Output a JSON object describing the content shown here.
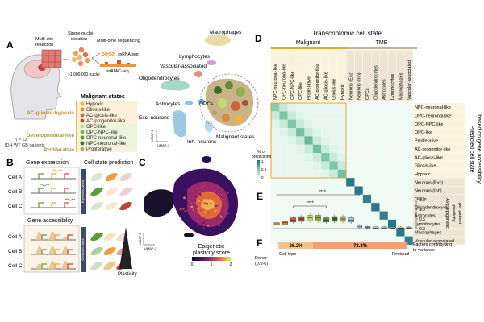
{
  "panels": {
    "A": "A",
    "B": "B",
    "C": "C",
    "D": "D",
    "E": "E",
    "F": "F"
  },
  "panel_a": {
    "steps": [
      "Multi-site resection",
      "Single-nuclei isolation",
      "Multi-ome sequencing"
    ],
    "assays": [
      "snRNA-seq",
      "snATAC-seq"
    ],
    "nuclei": ">1,000,000 nuclei",
    "patients": [
      "n = 12",
      "IDH WT GB patients"
    ],
    "umap_labels": [
      "Macrophages",
      "Lymphocytes",
      "Vascular-associated",
      "Oligodendrocytes",
      "Astrocytes",
      "OPCs",
      "Exc. neurons",
      "Inh. neurons",
      "Malignant states"
    ],
    "umap_axes": [
      "UMAP-2",
      "UMAP-1"
    ],
    "legend_title": "Malignant states",
    "groups": [
      "AC-gliosis-hypoxia",
      "Developmental-like",
      "Proliferative"
    ],
    "states": [
      {
        "name": "Hypoxic",
        "color": "#f2b43c"
      },
      {
        "name": "Gliosis-like",
        "color": "#d88a36"
      },
      {
        "name": "AC-gliosis-like",
        "color": "#c76439"
      },
      {
        "name": "AC-progenitor-like",
        "color": "#a8503a"
      },
      {
        "name": "OPC-like",
        "color": "#c7d87a"
      },
      {
        "name": "OPC-NPC-like",
        "color": "#8eb04e"
      },
      {
        "name": "OPC-neuronal-like",
        "color": "#5f8f3a"
      },
      {
        "name": "NPC-neuronal-like",
        "color": "#3d6e2d"
      },
      {
        "name": "Proliferative",
        "color": "#b8a468"
      }
    ]
  },
  "panel_b": {
    "gene_expression": "Gene expression",
    "cell_state_prediction": "Cell state prediction",
    "gene_accessibility": "Gene accessibility",
    "cells": [
      "Cell A",
      "Cell B",
      "Cell C"
    ],
    "bar_label_top": "Expression-based",
    "bar_label_bottom": "Chromatin-based",
    "plasticity": "Plasticity"
  },
  "panel_c": {
    "axes": [
      "UMAP-2",
      "UMAP-1"
    ],
    "score_label": [
      "Epigenetic",
      "plasticity score"
    ],
    "scale": [
      "0",
      "1",
      "2"
    ]
  },
  "panel_d": {
    "top_title": "Transcriptomic cell state",
    "malignant": "Malignant",
    "tme": "TME",
    "side_title": [
      "Predicted cell state",
      "based on gene accessibility"
    ],
    "labels": [
      "NPC-neuronal-like",
      "OPC-neuronal-like",
      "OPC-NPC-like",
      "OPC-like",
      "Proliferative",
      "AC-progenitor-like",
      "AC-gliosis-like",
      "Gliosis-like",
      "Hypoxic",
      "Neurons (Exc)",
      "Neurons (Inh)",
      "OPCs",
      "Oligodendrocytes",
      "Astrocytes",
      "Lymphocytes",
      "Macrophages",
      "Vascular-associated"
    ],
    "colorbar_title": [
      "% of",
      "predictions"
    ],
    "colorbar_ticks": [
      "1",
      "0.5",
      "0"
    ]
  },
  "panel_e": {
    "significance": [
      "****",
      "****"
    ],
    "ylabel": [
      "Avg. epigenetic",
      "plasticity",
      "per patient"
    ],
    "yticks": [
      "1.5",
      "1.0",
      "0.5",
      "0.0"
    ]
  },
  "panel_f": {
    "segments": [
      {
        "label": "26.2%",
        "fraction": 0.262,
        "color": "#f3c48a"
      },
      {
        "label": "73.3%",
        "fraction": 0.733,
        "color": "#f0a074"
      }
    ],
    "caption": [
      "Cell type",
      "Residual"
    ],
    "donor": [
      "Donor",
      "(0.5%)"
    ],
    "title": [
      "Factors contributing",
      "to variance"
    ]
  },
  "chart_data": {
    "type": "heatmap",
    "title": "Transcriptomic cell state vs predicted cell state based on gene accessibility",
    "x_categories": [
      "NPC-neuronal-like",
      "OPC-neuronal-like",
      "OPC-NPC-like",
      "OPC-like",
      "Proliferative",
      "AC-progenitor-like",
      "AC-gliosis-like",
      "Gliosis-like",
      "Hypoxic",
      "Neurons (Exc)",
      "Neurons (Inh)",
      "OPCs",
      "Oligodendrocytes",
      "Astrocytes",
      "Lymphocytes",
      "Macrophages",
      "Vascular-associated"
    ],
    "y_categories": [
      "NPC-neuronal-like",
      "OPC-neuronal-like",
      "OPC-NPC-like",
      "OPC-like",
      "Proliferative",
      "AC-progenitor-like",
      "AC-gliosis-like",
      "Gliosis-like",
      "Hypoxic",
      "Neurons (Exc)",
      "Neurons (Inh)",
      "OPCs",
      "Oligodendrocytes",
      "Astrocytes",
      "Lymphocytes",
      "Macrophages",
      "Vascular-associated"
    ],
    "diagonal_values": [
      0.45,
      0.5,
      0.5,
      0.55,
      0.6,
      0.55,
      0.5,
      0.5,
      0.55,
      0.95,
      0.95,
      0.9,
      0.95,
      0.9,
      0.95,
      0.95,
      0.9
    ],
    "offdiagonal_level": 0.08,
    "color_range": [
      0,
      1
    ],
    "boxplot_values": [
      0.25,
      0.3,
      0.45,
      0.5,
      0.55,
      0.55,
      0.45,
      0.5,
      0.5,
      0.45,
      0.12,
      0.05,
      0.03,
      0.03,
      0.02,
      0.02,
      0.02
    ],
    "boxplot_ylim": [
      0,
      1.5
    ]
  }
}
